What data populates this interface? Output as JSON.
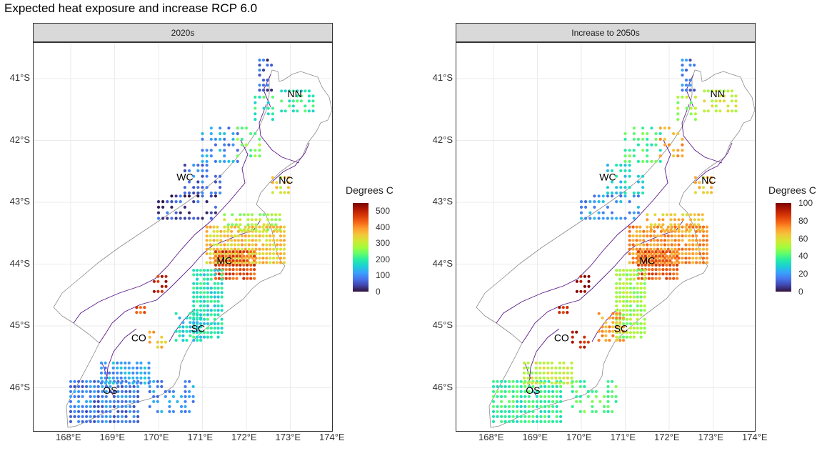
{
  "title": "Expected heat exposure and increase RCP 6.0",
  "panels": [
    {
      "strip": "2020s"
    },
    {
      "strip": "Increase to 2050s"
    }
  ],
  "y_ticks": [
    "41°S",
    "42°S",
    "43°S",
    "44°S",
    "45°S",
    "46°S"
  ],
  "x_ticks": [
    "168°E",
    "169°E",
    "170°E",
    "171°E",
    "172°E",
    "173°E",
    "174°E"
  ],
  "regions": [
    "NN",
    "WC",
    "NC",
    "MC",
    "CO",
    "SC",
    "OS"
  ],
  "legends": [
    {
      "title": "Degrees C",
      "ticks": [
        "500",
        "400",
        "300",
        "200",
        "100",
        "0"
      ],
      "max": 550
    },
    {
      "title": "Degrees C",
      "ticks": [
        "100",
        "80",
        "60",
        "40",
        "20",
        "0"
      ],
      "max": 100
    }
  ],
  "colors": {
    "map_outline": "#8c8c8c",
    "region_border": "#5b1a8a",
    "grid": "#ebebeb"
  }
}
